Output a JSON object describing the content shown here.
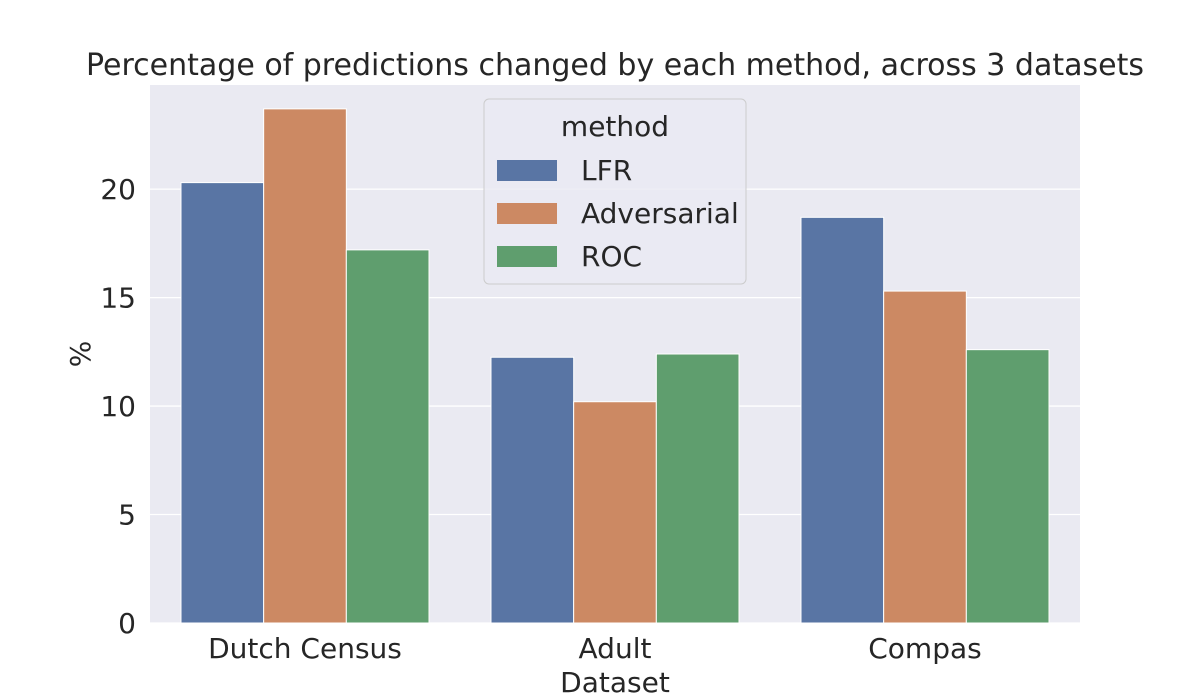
{
  "chart_data": {
    "type": "bar",
    "title": "Percentage of predictions changed by each method, across 3 datasets",
    "xlabel": "Dataset",
    "ylabel": "%",
    "categories": [
      "Dutch Census",
      "Adult",
      "Compas"
    ],
    "series": [
      {
        "name": "LFR",
        "values": [
          20.3,
          12.25,
          18.7
        ]
      },
      {
        "name": "Adversarial",
        "values": [
          23.7,
          10.2,
          15.3
        ]
      },
      {
        "name": "ROC",
        "values": [
          17.2,
          12.4,
          12.6
        ]
      }
    ],
    "ylim": [
      0,
      24.8
    ],
    "yticks": [
      0,
      5,
      10,
      15,
      20
    ],
    "grid": true,
    "legend": {
      "title": "method",
      "position": "top-center"
    },
    "colors": {
      "LFR": "#5975a4",
      "Adversarial": "#cc8963",
      "ROC": "#5f9e6e",
      "plot_background": "#eaeaf2",
      "grid": "#ffffff"
    }
  }
}
